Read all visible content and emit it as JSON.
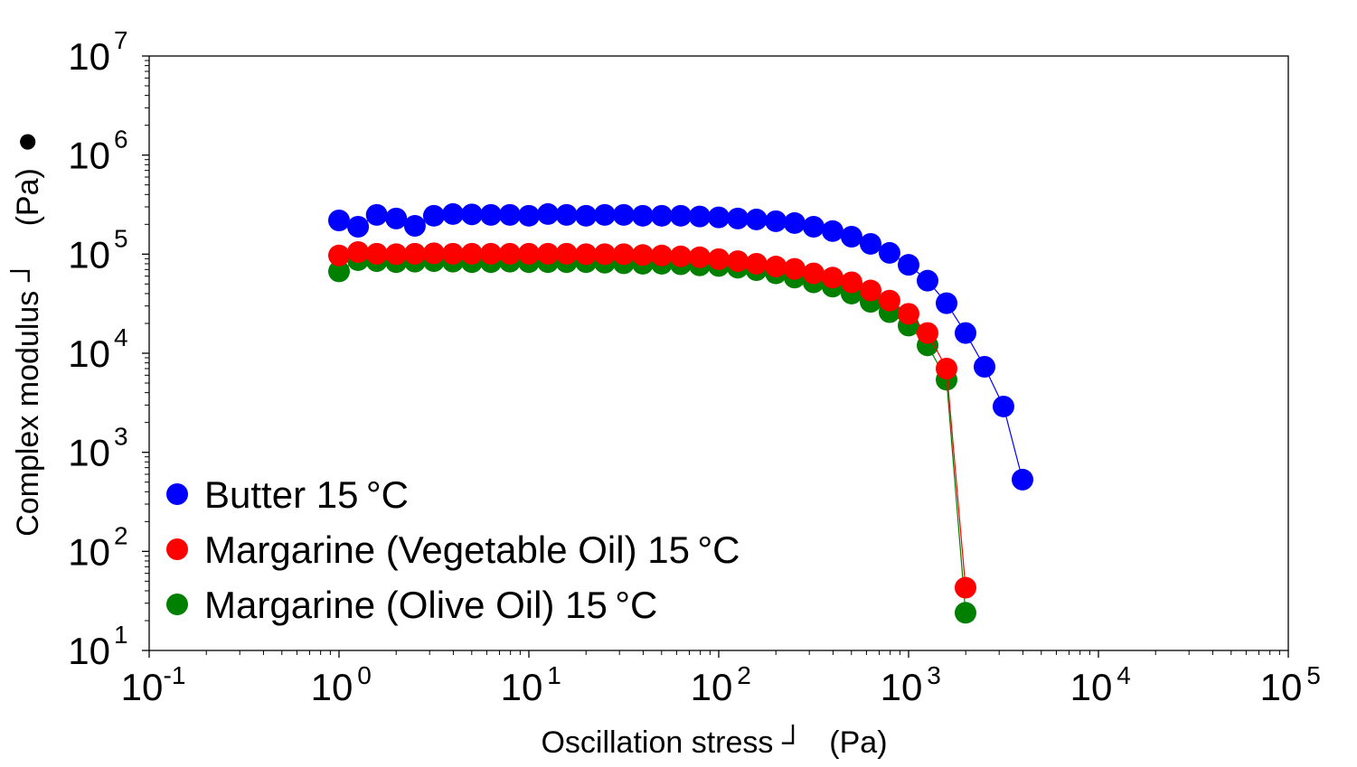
{
  "chart_data": {
    "type": "scatter",
    "xlabel": "Oscillation stress ┘   (Pa)",
    "ylabel": "Complex modulus ┘    (Pa)",
    "ylabel_symbol": "●",
    "x_scale": "log",
    "y_scale": "log",
    "xlim": [
      0.1,
      100000
    ],
    "ylim": [
      10,
      10000000
    ],
    "x_ticks": [
      {
        "base": "10",
        "exp": "-1"
      },
      {
        "base": "10",
        "exp": "0"
      },
      {
        "base": "10",
        "exp": "1"
      },
      {
        "base": "10",
        "exp": "2"
      },
      {
        "base": "10",
        "exp": "3"
      },
      {
        "base": "10",
        "exp": "4"
      },
      {
        "base": "10",
        "exp": "5"
      }
    ],
    "y_ticks": [
      {
        "base": "10",
        "exp": "1"
      },
      {
        "base": "10",
        "exp": "2"
      },
      {
        "base": "10",
        "exp": "3"
      },
      {
        "base": "10",
        "exp": "4"
      },
      {
        "base": "10",
        "exp": "5"
      },
      {
        "base": "10",
        "exp": "6"
      },
      {
        "base": "10",
        "exp": "7"
      }
    ],
    "grid": false,
    "legend_position": "bottom-left",
    "series": [
      {
        "name": "Butter 15 °C",
        "color": "#0000ff",
        "x": [
          1.0,
          1.26,
          1.58,
          2.0,
          2.51,
          3.16,
          3.98,
          5.01,
          6.31,
          7.94,
          10.0,
          12.6,
          15.8,
          20.0,
          25.1,
          31.6,
          39.8,
          50.1,
          63.1,
          79.4,
          100,
          126,
          158,
          200,
          251,
          316,
          398,
          501,
          631,
          794,
          1000,
          1259,
          1585,
          1995,
          2512,
          3162,
          3981
        ],
        "y": [
          219000,
          189000,
          249000,
          229000,
          193000,
          244000,
          254000,
          252000,
          249000,
          249000,
          244000,
          254000,
          249000,
          244000,
          249000,
          249000,
          244000,
          244000,
          244000,
          240000,
          235000,
          229000,
          224000,
          215000,
          206000,
          189000,
          171000,
          150000,
          127000,
          103000,
          78000,
          54000,
          32000,
          16000,
          7300,
          2900,
          530
        ]
      },
      {
        "name": "Margarine (Vegetable Oil) 15 °C",
        "color": "#ff0000",
        "x": [
          1.0,
          1.26,
          1.58,
          2.0,
          2.51,
          3.16,
          3.98,
          5.01,
          6.31,
          7.94,
          10.0,
          12.6,
          15.8,
          20.0,
          25.1,
          31.6,
          39.8,
          50.1,
          63.1,
          79.4,
          100,
          126,
          158,
          200,
          251,
          316,
          398,
          501,
          631,
          794,
          1000,
          1259,
          1585,
          1995
        ],
        "y": [
          97000,
          105000,
          101000,
          100000,
          101000,
          102000,
          101000,
          101000,
          101000,
          101000,
          101000,
          101000,
          101000,
          100000,
          100000,
          100000,
          98000,
          97000,
          95000,
          93000,
          89000,
          85000,
          80000,
          75000,
          71000,
          64000,
          58000,
          52000,
          43000,
          34000,
          25000,
          16000,
          7000,
          43
        ]
      },
      {
        "name": "Margarine (Olive Oil) 15 °C",
        "color": "#008000",
        "x": [
          1.0,
          1.26,
          1.58,
          2.0,
          2.51,
          3.16,
          3.98,
          5.01,
          6.31,
          7.94,
          10.0,
          12.6,
          15.8,
          20.0,
          25.1,
          31.6,
          39.8,
          50.1,
          63.1,
          79.4,
          100,
          126,
          158,
          200,
          251,
          316,
          398,
          501,
          631,
          794,
          1000,
          1259,
          1585,
          1995
        ],
        "y": [
          67000,
          87000,
          85000,
          83000,
          84000,
          85000,
          84000,
          83000,
          83000,
          84000,
          83000,
          83000,
          83000,
          83000,
          82000,
          81000,
          80000,
          80000,
          79000,
          77000,
          76000,
          73000,
          69000,
          64000,
          58000,
          52000,
          47000,
          40000,
          33000,
          26000,
          19000,
          12000,
          5400,
          24
        ]
      }
    ]
  }
}
